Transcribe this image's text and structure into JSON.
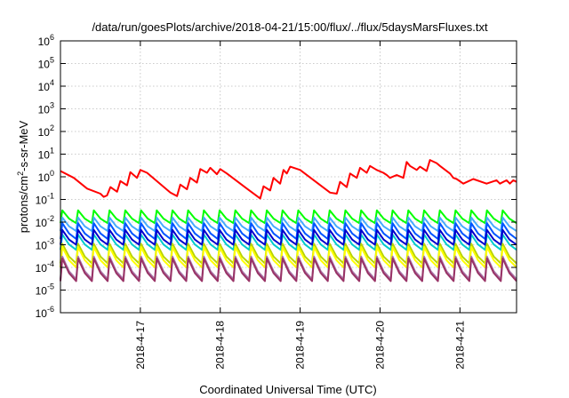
{
  "chart_data": {
    "type": "line",
    "title": "/data/run/goesPlots/archive/2018-04-21/15:00/flux/../flux/5daysMarsFluxes.txt",
    "xlabel": "Coordinated Universal Time (UTC)",
    "ylabel": "protons/cm2-s-sr-MeV",
    "y_scale": "log",
    "ylim": [
      1e-06,
      1000000.0
    ],
    "xlim": [
      "2018-04-16T00:00",
      "2018-04-21T17:00"
    ],
    "grid": true,
    "x_ticks": [
      {
        "date": "2018-04-17T00:00",
        "label": "2018-4-17"
      },
      {
        "date": "2018-04-18T00:00",
        "label": "2018-4-18"
      },
      {
        "date": "2018-04-19T00:00",
        "label": "2018-4-19"
      },
      {
        "date": "2018-04-20T00:00",
        "label": "2018-4-20"
      },
      {
        "date": "2018-04-21T00:00",
        "label": "2018-4-21"
      }
    ],
    "y_ticks": [
      {
        "value": 1e-06,
        "base": "10",
        "exp": "-6"
      },
      {
        "value": 1e-05,
        "base": "10",
        "exp": "-5"
      },
      {
        "value": 0.0001,
        "base": "10",
        "exp": "-4"
      },
      {
        "value": 0.001,
        "base": "10",
        "exp": "-3"
      },
      {
        "value": 0.01,
        "base": "10",
        "exp": "-2"
      },
      {
        "value": 0.1,
        "base": "10",
        "exp": "-1"
      },
      {
        "value": 1.0,
        "base": "10",
        "exp": "0"
      },
      {
        "value": 10.0,
        "base": "10",
        "exp": "1"
      },
      {
        "value": 100.0,
        "base": "10",
        "exp": "2"
      },
      {
        "value": 1000.0,
        "base": "10",
        "exp": "3"
      },
      {
        "value": 10000.0,
        "base": "10",
        "exp": "4"
      },
      {
        "value": 100000.0,
        "base": "10",
        "exp": "5"
      },
      {
        "value": 1000000.0,
        "base": "10",
        "exp": "6"
      }
    ],
    "series": [
      {
        "color": "#ff0000",
        "x": [
          "2018-04-16T00:00",
          "2018-04-16T04:00",
          "2018-04-16T08:00",
          "2018-04-16T12:00",
          "2018-04-16T13:00",
          "2018-04-16T14:00",
          "2018-04-16T15:00",
          "2018-04-16T17:00",
          "2018-04-16T18:00",
          "2018-04-16T20:00",
          "2018-04-16T21:00",
          "2018-04-16T23:00",
          "2018-04-17T00:00",
          "2018-04-17T02:00",
          "2018-04-17T09:00",
          "2018-04-17T11:00",
          "2018-04-17T12:00",
          "2018-04-17T14:00",
          "2018-04-17T15:00",
          "2018-04-17T17:00",
          "2018-04-17T18:00",
          "2018-04-17T20:00",
          "2018-04-17T21:00",
          "2018-04-17T23:00",
          "2018-04-18T00:00",
          "2018-04-18T02:00",
          "2018-04-18T08:00",
          "2018-04-18T12:00",
          "2018-04-18T13:00",
          "2018-04-18T15:00",
          "2018-04-18T16:00",
          "2018-04-18T18:00",
          "2018-04-18T19:00",
          "2018-04-18T20:00",
          "2018-04-18T21:00",
          "2018-04-19T00:00",
          "2018-04-19T09:00",
          "2018-04-19T11:00",
          "2018-04-19T12:00",
          "2018-04-19T14:00",
          "2018-04-19T15:00",
          "2018-04-19T17:00",
          "2018-04-19T18:00",
          "2018-04-19T20:00",
          "2018-04-19T21:00",
          "2018-04-19T23:00",
          "2018-04-20T01:00",
          "2018-04-20T02:00",
          "2018-04-20T03:00",
          "2018-04-20T05:00",
          "2018-04-20T07:00",
          "2018-04-20T08:00",
          "2018-04-20T09:00",
          "2018-04-20T11:00",
          "2018-04-20T12:00",
          "2018-04-20T14:00",
          "2018-04-20T15:00",
          "2018-04-20T17:00",
          "2018-04-20T18:00",
          "2018-04-20T21:00",
          "2018-04-20T22:00",
          "2018-04-20T23:00",
          "2018-04-21T01:00",
          "2018-04-21T04:00",
          "2018-04-21T08:00",
          "2018-04-21T11:00",
          "2018-04-21T12:00",
          "2018-04-21T14:00",
          "2018-04-21T15:00",
          "2018-04-21T16:00",
          "2018-04-21T17:00"
        ],
        "y": [
          1.8,
          0.9,
          0.3,
          0.18,
          0.13,
          0.15,
          0.35,
          0.22,
          0.65,
          0.42,
          1.6,
          0.9,
          2.0,
          1.5,
          0.2,
          0.14,
          0.45,
          0.28,
          0.9,
          0.55,
          2.2,
          1.5,
          2.5,
          1.3,
          2.2,
          1.4,
          0.3,
          0.11,
          0.38,
          0.25,
          0.9,
          0.5,
          2.0,
          1.4,
          2.8,
          2.0,
          0.2,
          0.18,
          0.6,
          0.35,
          1.4,
          0.9,
          2.5,
          1.5,
          3.0,
          2.0,
          1.5,
          1.2,
          0.9,
          1.2,
          0.9,
          4.5,
          3.0,
          2.0,
          2.8,
          1.8,
          5.5,
          4.0,
          3.0,
          1.4,
          0.9,
          0.8,
          0.5,
          0.8,
          0.5,
          0.7,
          0.5,
          0.7,
          0.5,
          0.7,
          0.6
        ]
      },
      {
        "color": "#00ff00",
        "shape": "saw",
        "min": 0.009,
        "max": 0.033,
        "cycles": 29
      },
      {
        "color": "#44aaff",
        "shape": "saw",
        "min": 0.004,
        "max": 0.016,
        "cycles": 29
      },
      {
        "color": "#0055ff",
        "shape": "saw",
        "min": 0.0018,
        "max": 0.009,
        "cycles": 29
      },
      {
        "color": "#00cccc",
        "shape": "saw",
        "min": 0.0006,
        "max": 0.0028,
        "cycles": 29
      },
      {
        "color": "#0000cc",
        "shape": "saw",
        "min": 0.001,
        "max": 0.0045,
        "cycles": 29
      },
      {
        "color": "#b8d400",
        "shape": "saw",
        "min": 0.00015,
        "max": 0.0011,
        "cycles": 29
      },
      {
        "color": "#ffff00",
        "shape": "saw",
        "min": 0.0001,
        "max": 0.0008,
        "cycles": 29
      },
      {
        "color": "#aa77aa",
        "shape": "saw",
        "min": 3e-05,
        "max": 0.0003,
        "cycles": 29
      },
      {
        "color": "#993366",
        "shape": "saw",
        "min": 2.5e-05,
        "max": 0.00025,
        "cycles": 29
      }
    ]
  }
}
